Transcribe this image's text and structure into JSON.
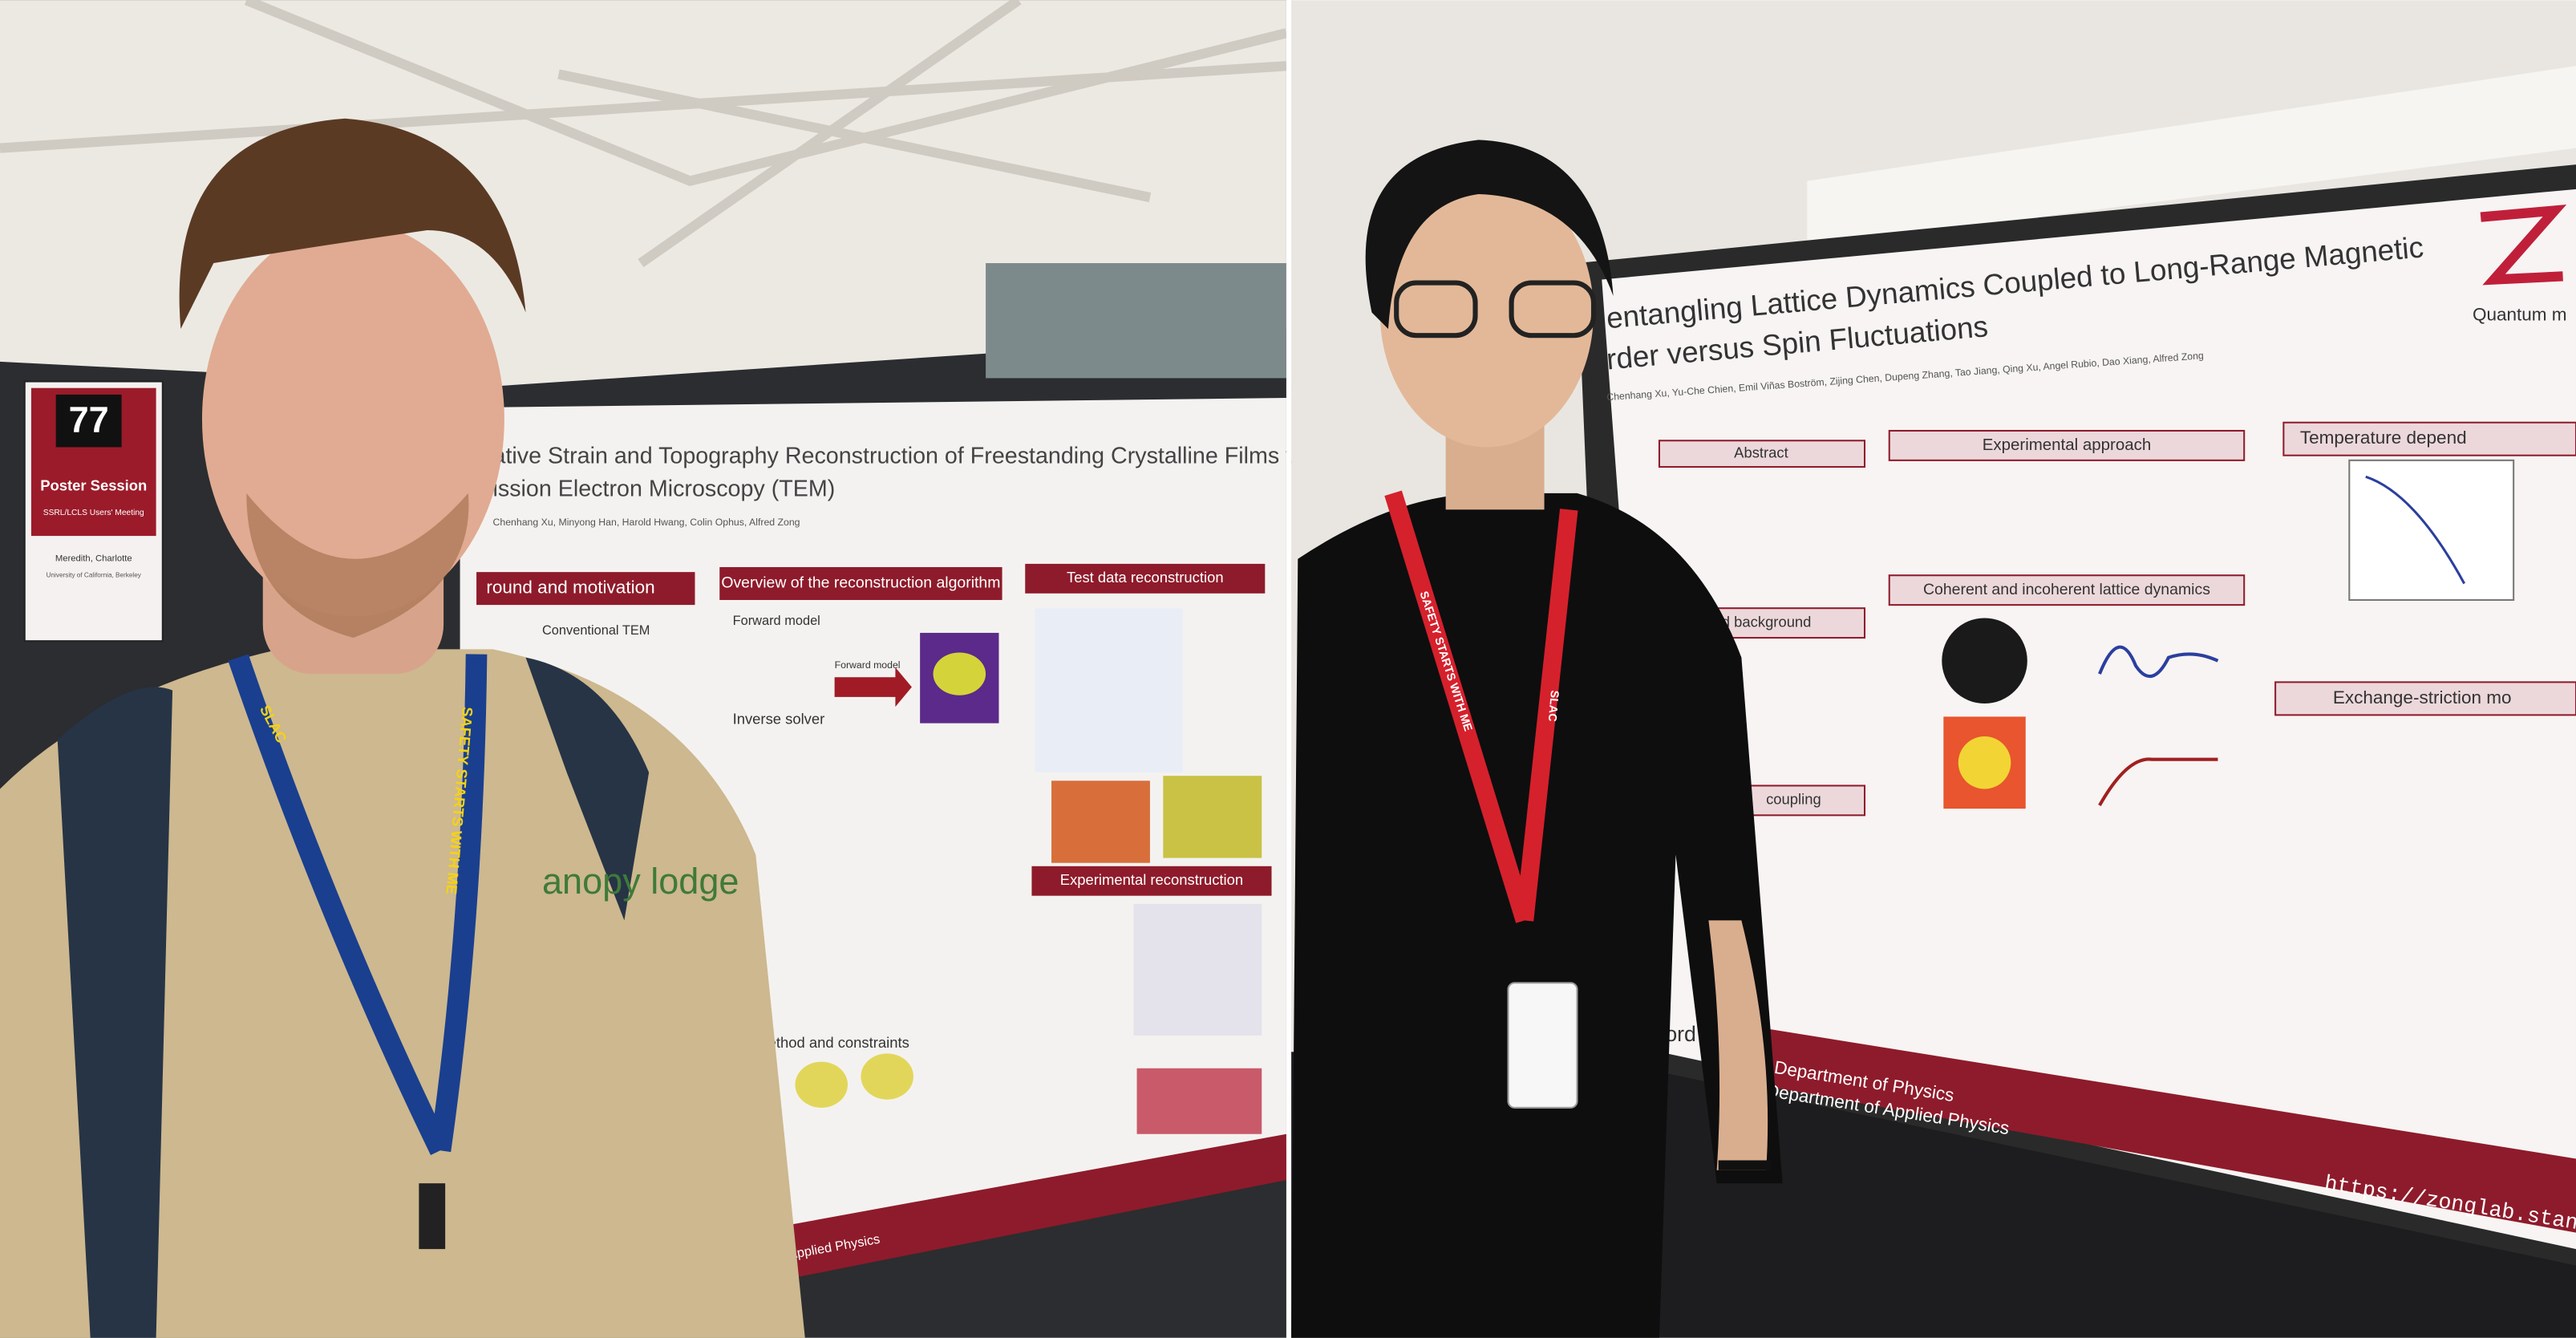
{
  "left_photo": {
    "sign": {
      "number": "77",
      "title": "Poster Session",
      "subtitle": "SSRL/LCLS Users' Meeting",
      "name": "Meredith, Charlotte",
      "affiliation": "University of California, Berkeley"
    },
    "poster": {
      "title_line1": "ative Strain and Topography Reconstruction of Freestanding Crystalline Films via",
      "title_line2": "ission Electron Microscopy (TEM)",
      "authors": "Chenhang Xu, Minyong Han, Harold Hwang, Colin Ophus, Alfred Zong",
      "sections": [
        "round and motivation",
        "Overview of the reconstruction algorithm",
        "Test data reconstruction",
        "Experimental reconstruction"
      ],
      "subheads": [
        "Conventional TEM",
        "Forward model",
        "Inverse solver",
        "Forward model",
        "method and constraints"
      ],
      "footer": "Applied Physics"
    },
    "shirt": "anopy lodge",
    "lanyard": "SAFETY STARTS WITH ME",
    "lanyard_logo": "SLAC"
  },
  "right_photo": {
    "poster": {
      "title_line1": "entangling Lattice Dynamics Coupled to Long-Range Magnetic",
      "title_line2": "rder versus Spin Fluctuations",
      "brand": "Quantum m",
      "authors": "Chenhang Xu, Yu-Che Chien, Emil Viñas Boström, Zijing Chen, Dupeng Zhang, Tao Jiang, Qing Xu, Angel Rubio, Dao Xiang, Alfred Zong",
      "sections": [
        "Abstract",
        "Experimental approach",
        "Coherent and incoherent lattice dynamics",
        "Temperature depend",
        "Exchange-striction mo",
        "and background",
        "coupling"
      ],
      "footer_line1": "Department of Physics",
      "footer_line2": "Department of Applied Physics",
      "footer_left": "ford",
      "url": "https://zonglab.stanfor"
    },
    "lanyard": "SAFETY STARTS WITH ME",
    "lanyard_logo": "SLAC"
  }
}
